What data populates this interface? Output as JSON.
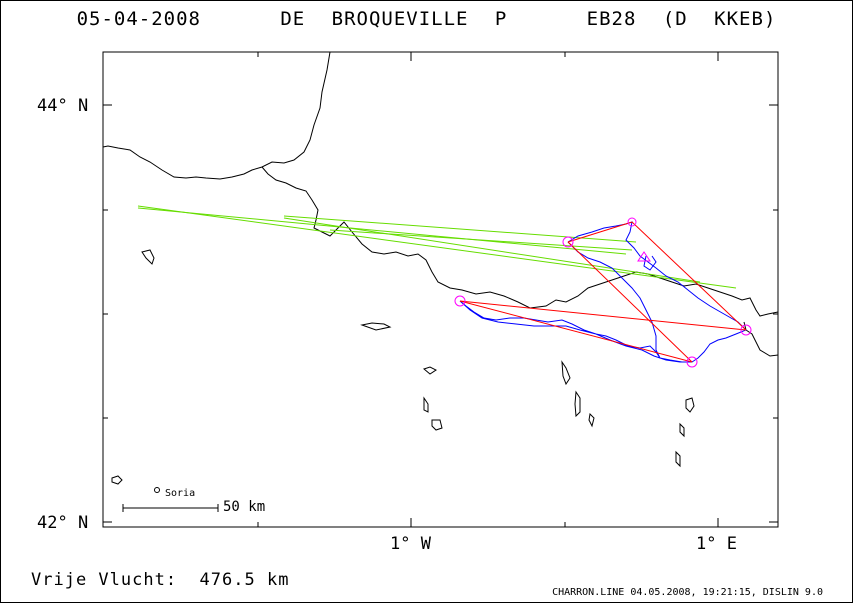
{
  "header": {
    "date": "05-04-2008",
    "pilot": "DE BROQUEVILLE P",
    "glider": "EB28 (D KKEB)"
  },
  "axes": {
    "lat_north": "44° N",
    "lat_south": "42° N",
    "lon_west": "1° W",
    "lon_east": "1° E"
  },
  "scale": {
    "label": "50 km"
  },
  "place": {
    "name": "Soria"
  },
  "footer": {
    "distance_label": "Vrije Vlucht:",
    "distance_value": "476.5 km",
    "credit": "CHARRON.LINE 04.05.2008, 19:21:15, DISLIN 9.0"
  },
  "colors": {
    "coast": "#000000",
    "track": "#0000ff",
    "task": "#ff0000",
    "turnpoint": "#ff00ff",
    "wind": "#66dd00"
  }
}
